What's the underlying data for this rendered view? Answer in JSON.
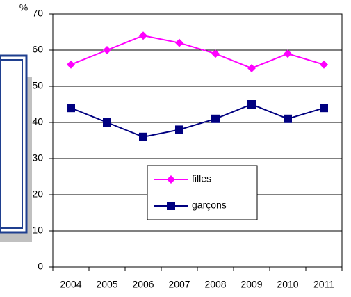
{
  "chart_data": {
    "type": "line",
    "y_label": "%",
    "categories": [
      "2004",
      "2005",
      "2006",
      "2007",
      "2008",
      "2009",
      "2010",
      "2011"
    ],
    "series": [
      {
        "name": "filles",
        "color": "#ff00ff",
        "marker": "diamond",
        "values": [
          56,
          60,
          64,
          62,
          59,
          55,
          59,
          56
        ]
      },
      {
        "name": "garçons",
        "color": "#000080",
        "marker": "square",
        "values": [
          44,
          40,
          36,
          38,
          41,
          45,
          41,
          44
        ]
      }
    ],
    "ylim": [
      0,
      70
    ],
    "yticks": [
      0,
      10,
      20,
      30,
      40,
      50,
      60,
      70
    ],
    "grid": true
  }
}
